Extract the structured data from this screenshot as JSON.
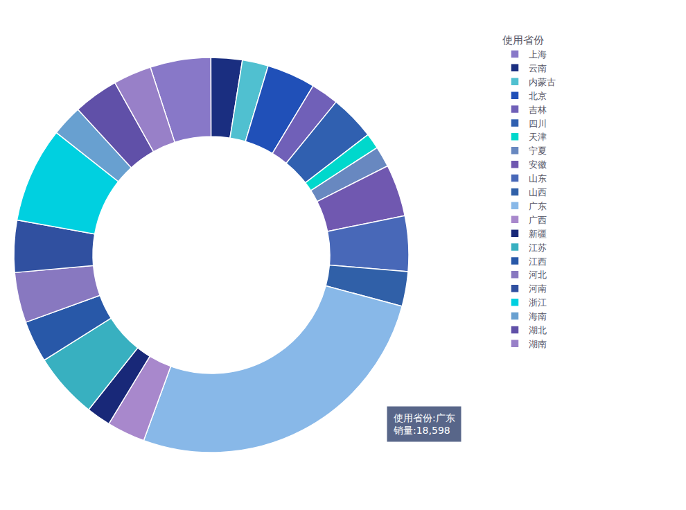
{
  "chart_data": {
    "type": "pie",
    "legend_title": "使用省份",
    "legend": "right",
    "data_labels": false,
    "categories": [
      "上海",
      "云南",
      "内蒙古",
      "北京",
      "吉林",
      "四川",
      "天津",
      "宁夏",
      "安徽",
      "山东",
      "山西",
      "广东",
      "广西",
      "新疆",
      "江苏",
      "江西",
      "河北",
      "河南",
      "浙江",
      "海南",
      "湖北",
      "湖南"
    ],
    "values": [
      3500,
      1800,
      1500,
      2800,
      1600,
      2600,
      900,
      1200,
      3000,
      3200,
      2000,
      18598,
      2200,
      1400,
      3800,
      2400,
      2900,
      3000,
      5500,
      1800,
      2600,
      2200
    ],
    "colors": [
      "#8878c8",
      "#1a2e80",
      "#50c0d0",
      "#2050b8",
      "#7060b8",
      "#3060b0",
      "#00d8cc",
      "#6888c0",
      "#7058b0",
      "#4868b8",
      "#3060a8",
      "#88b8e8",
      "#a888cc",
      "#182878",
      "#38b0c0",
      "#2858a8",
      "#8878c0",
      "#3050a0",
      "#00d0e0",
      "#68a0d0",
      "#6050a8",
      "#9880c8"
    ],
    "annotations": [
      {
        "text": [
          "使用省份:广东",
          "销量:18,598"
        ],
        "color": "#4a5a80"
      }
    ]
  }
}
